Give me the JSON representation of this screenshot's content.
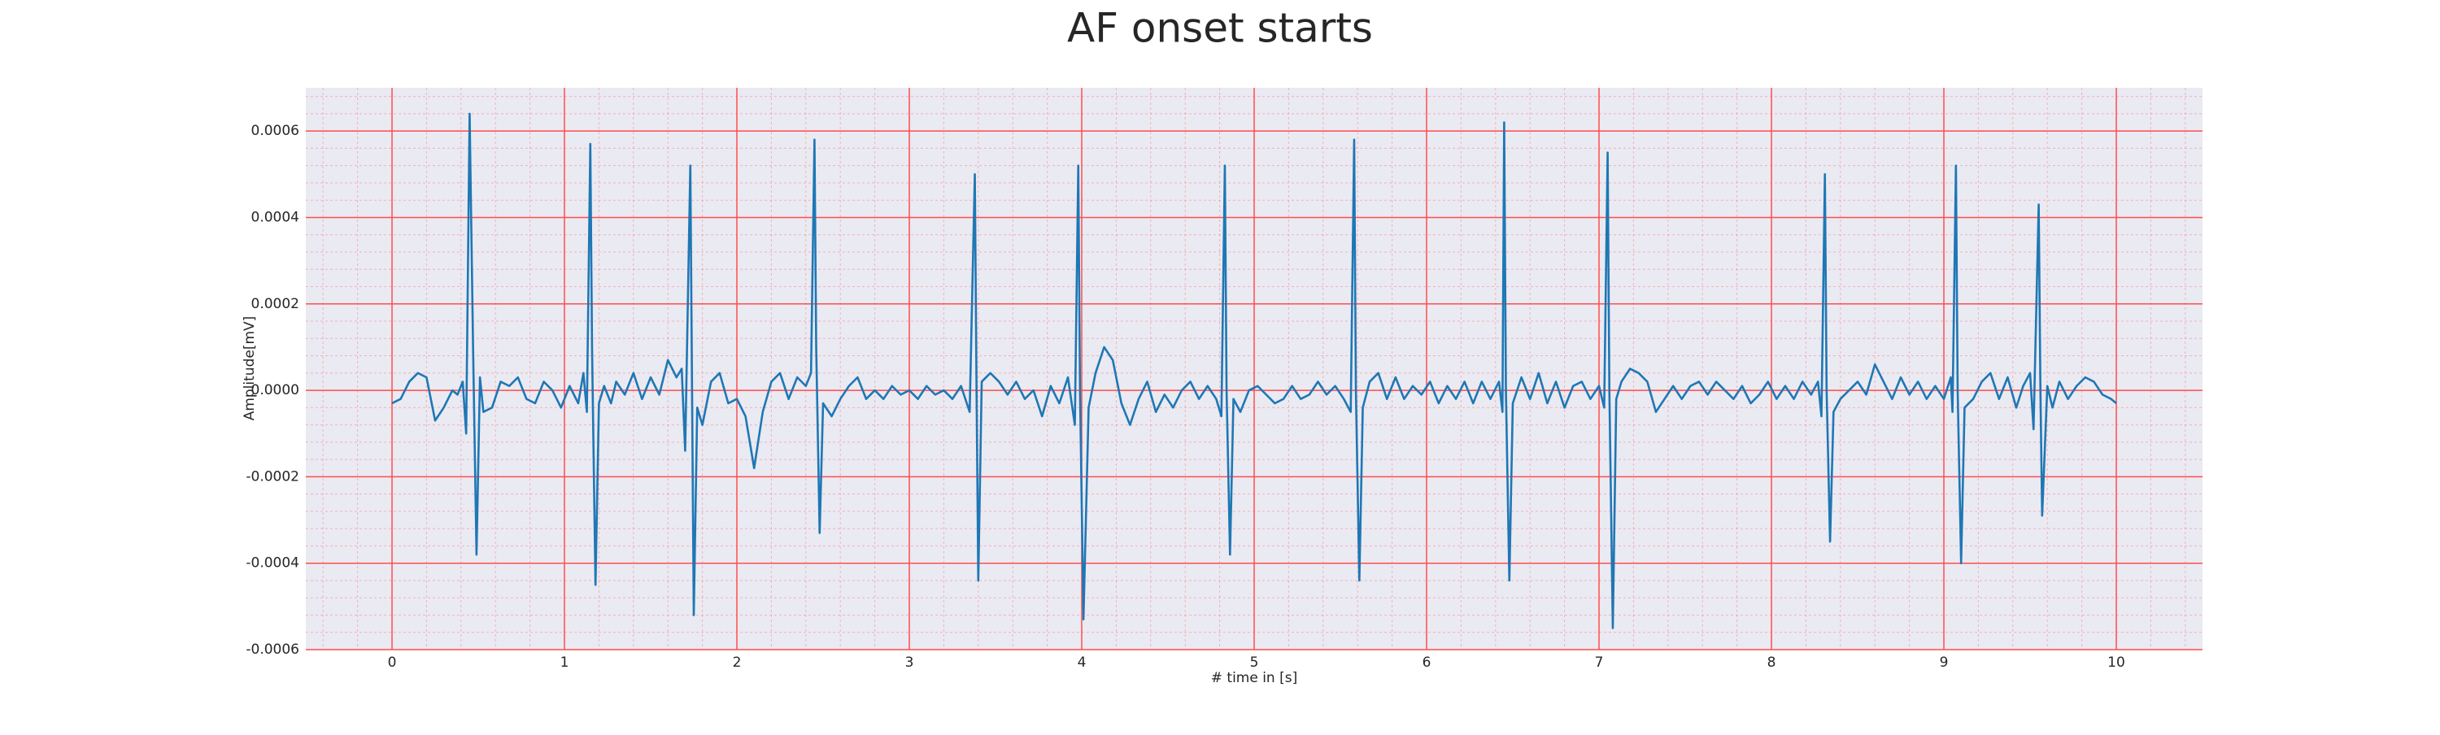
{
  "chart_data": {
    "type": "line",
    "title": "AF onset starts",
    "x_label": "# time in [s]",
    "y_label": "Amplitude[mV]",
    "color": "#1f77b4",
    "grid": true,
    "grid_color": "#ff4d4d",
    "minor_grid": true,
    "xlim": [
      -0.5,
      10.5
    ],
    "ylim": [
      -0.0006,
      0.0007
    ],
    "xticks": [
      0,
      1,
      2,
      3,
      4,
      5,
      6,
      7,
      8,
      9,
      10
    ],
    "yticks": [
      {
        "value": -0.0006,
        "label": "-0.0006"
      },
      {
        "value": -0.0004,
        "label": "-0.0004"
      },
      {
        "value": -0.0002,
        "label": "-0.0002"
      },
      {
        "value": 0,
        "label": "0.0000"
      },
      {
        "value": 0.0002,
        "label": "0.0002"
      },
      {
        "value": 0.0004,
        "label": "0.0004"
      },
      {
        "value": 0.0006,
        "label": "0.0006"
      }
    ],
    "x": [
      0.0,
      0.05,
      0.1,
      0.15,
      0.2,
      0.25,
      0.3,
      0.35,
      0.38,
      0.41,
      0.43,
      0.45,
      0.47,
      0.49,
      0.51,
      0.53,
      0.58,
      0.63,
      0.68,
      0.73,
      0.78,
      0.83,
      0.88,
      0.93,
      0.98,
      1.03,
      1.08,
      1.11,
      1.13,
      1.15,
      1.16,
      1.18,
      1.2,
      1.23,
      1.27,
      1.3,
      1.35,
      1.4,
      1.45,
      1.5,
      1.55,
      1.6,
      1.65,
      1.68,
      1.7,
      1.73,
      1.74,
      1.75,
      1.77,
      1.8,
      1.85,
      1.9,
      1.95,
      2.0,
      2.05,
      2.1,
      2.15,
      2.2,
      2.25,
      2.3,
      2.35,
      2.4,
      2.43,
      2.45,
      2.46,
      2.48,
      2.5,
      2.55,
      2.6,
      2.65,
      2.7,
      2.75,
      2.8,
      2.85,
      2.9,
      2.95,
      3.0,
      3.05,
      3.1,
      3.15,
      3.2,
      3.25,
      3.3,
      3.35,
      3.38,
      3.39,
      3.4,
      3.42,
      3.47,
      3.52,
      3.57,
      3.62,
      3.67,
      3.72,
      3.77,
      3.82,
      3.87,
      3.92,
      3.96,
      3.98,
      3.99,
      4.01,
      4.04,
      4.08,
      4.13,
      4.18,
      4.23,
      4.28,
      4.33,
      4.38,
      4.43,
      4.48,
      4.53,
      4.58,
      4.63,
      4.68,
      4.73,
      4.78,
      4.81,
      4.83,
      4.84,
      4.86,
      4.88,
      4.92,
      4.97,
      5.02,
      5.07,
      5.12,
      5.17,
      5.22,
      5.27,
      5.32,
      5.37,
      5.42,
      5.47,
      5.52,
      5.56,
      5.58,
      5.59,
      5.61,
      5.63,
      5.67,
      5.72,
      5.77,
      5.82,
      5.87,
      5.92,
      5.97,
      6.02,
      6.07,
      6.12,
      6.17,
      6.22,
      6.27,
      6.32,
      6.37,
      6.42,
      6.44,
      6.45,
      6.46,
      6.48,
      6.5,
      6.55,
      6.6,
      6.65,
      6.7,
      6.75,
      6.8,
      6.85,
      6.9,
      6.95,
      7.0,
      7.03,
      7.05,
      7.06,
      7.08,
      7.1,
      7.13,
      7.18,
      7.23,
      7.28,
      7.33,
      7.38,
      7.43,
      7.48,
      7.53,
      7.58,
      7.63,
      7.68,
      7.73,
      7.78,
      7.83,
      7.88,
      7.93,
      7.98,
      8.03,
      8.08,
      8.13,
      8.18,
      8.23,
      8.27,
      8.29,
      8.31,
      8.32,
      8.34,
      8.36,
      8.4,
      8.45,
      8.5,
      8.55,
      8.6,
      8.65,
      8.7,
      8.75,
      8.8,
      8.85,
      8.9,
      8.95,
      9.0,
      9.04,
      9.05,
      9.07,
      9.08,
      9.1,
      9.12,
      9.17,
      9.22,
      9.27,
      9.32,
      9.37,
      9.42,
      9.46,
      9.5,
      9.52,
      9.55,
      9.56,
      9.57,
      9.6,
      9.63,
      9.67,
      9.72,
      9.77,
      9.82,
      9.87,
      9.92,
      9.97,
      10.0
    ],
    "values": [
      -3e-05,
      -2e-05,
      2e-05,
      4e-05,
      3e-05,
      -7e-05,
      -4e-05,
      0.0,
      -1e-05,
      2e-05,
      -0.0001,
      0.00064,
      0.0001,
      -0.00038,
      3e-05,
      -5e-05,
      -4e-05,
      2e-05,
      1e-05,
      3e-05,
      -2e-05,
      -3e-05,
      2e-05,
      0.0,
      -4e-05,
      1e-05,
      -3e-05,
      4e-05,
      -5e-05,
      0.00057,
      0.0001,
      -0.00045,
      -3e-05,
      1e-05,
      -3e-05,
      2e-05,
      -1e-05,
      4e-05,
      -2e-05,
      3e-05,
      -1e-05,
      7e-05,
      3e-05,
      5e-05,
      -0.00014,
      0.00052,
      0.0,
      -0.00052,
      -4e-05,
      -8e-05,
      2e-05,
      4e-05,
      -3e-05,
      -2e-05,
      -6e-05,
      -0.00018,
      -5e-05,
      2e-05,
      4e-05,
      -2e-05,
      3e-05,
      1e-05,
      4e-05,
      0.00058,
      0.0001,
      -0.00033,
      -3e-05,
      -6e-05,
      -2e-05,
      1e-05,
      3e-05,
      -2e-05,
      0.0,
      -2e-05,
      1e-05,
      -1e-05,
      0.0,
      -2e-05,
      1e-05,
      -1e-05,
      0.0,
      -2e-05,
      1e-05,
      -5e-05,
      0.0005,
      0.0,
      -0.00044,
      2e-05,
      4e-05,
      2e-05,
      -1e-05,
      2e-05,
      -2e-05,
      0.0,
      -6e-05,
      1e-05,
      -3e-05,
      3e-05,
      -8e-05,
      0.00052,
      0.0,
      -0.00053,
      -4e-05,
      4e-05,
      0.0001,
      7e-05,
      -3e-05,
      -8e-05,
      -2e-05,
      2e-05,
      -5e-05,
      -1e-05,
      -4e-05,
      0.0,
      2e-05,
      -2e-05,
      1e-05,
      -2e-05,
      -6e-05,
      0.00052,
      0.0,
      -0.00038,
      -2e-05,
      -5e-05,
      0.0,
      1e-05,
      -1e-05,
      -3e-05,
      -2e-05,
      1e-05,
      -2e-05,
      -1e-05,
      2e-05,
      -1e-05,
      1e-05,
      -2e-05,
      -5e-05,
      0.00058,
      0.0,
      -0.00044,
      -4e-05,
      2e-05,
      4e-05,
      -2e-05,
      3e-05,
      -2e-05,
      1e-05,
      -1e-05,
      2e-05,
      -3e-05,
      1e-05,
      -2e-05,
      2e-05,
      -3e-05,
      2e-05,
      -2e-05,
      2e-05,
      -5e-05,
      0.00062,
      0.0,
      -0.00044,
      -3e-05,
      3e-05,
      -2e-05,
      4e-05,
      -3e-05,
      2e-05,
      -4e-05,
      1e-05,
      2e-05,
      -2e-05,
      1e-05,
      -4e-05,
      0.00055,
      0.0,
      -0.00055,
      -2e-05,
      2e-05,
      5e-05,
      4e-05,
      2e-05,
      -5e-05,
      -2e-05,
      1e-05,
      -2e-05,
      1e-05,
      2e-05,
      -1e-05,
      2e-05,
      0.0,
      -2e-05,
      1e-05,
      -3e-05,
      -1e-05,
      2e-05,
      -2e-05,
      1e-05,
      -2e-05,
      2e-05,
      -1e-05,
      2e-05,
      -6e-05,
      0.0005,
      0.0,
      -0.00035,
      -5e-05,
      -2e-05,
      0.0,
      2e-05,
      -1e-05,
      6e-05,
      2e-05,
      -2e-05,
      3e-05,
      -1e-05,
      2e-05,
      -2e-05,
      1e-05,
      -2e-05,
      3e-05,
      -5e-05,
      0.00052,
      0.0,
      -0.0004,
      -4e-05,
      -2e-05,
      2e-05,
      4e-05,
      -2e-05,
      3e-05,
      -4e-05,
      1e-05,
      4e-05,
      -9e-05,
      0.00043,
      0.0,
      -0.00029,
      1e-05,
      -4e-05,
      2e-05,
      -2e-05,
      1e-05,
      3e-05,
      2e-05,
      -1e-05,
      -2e-05,
      -3e-05
    ]
  }
}
